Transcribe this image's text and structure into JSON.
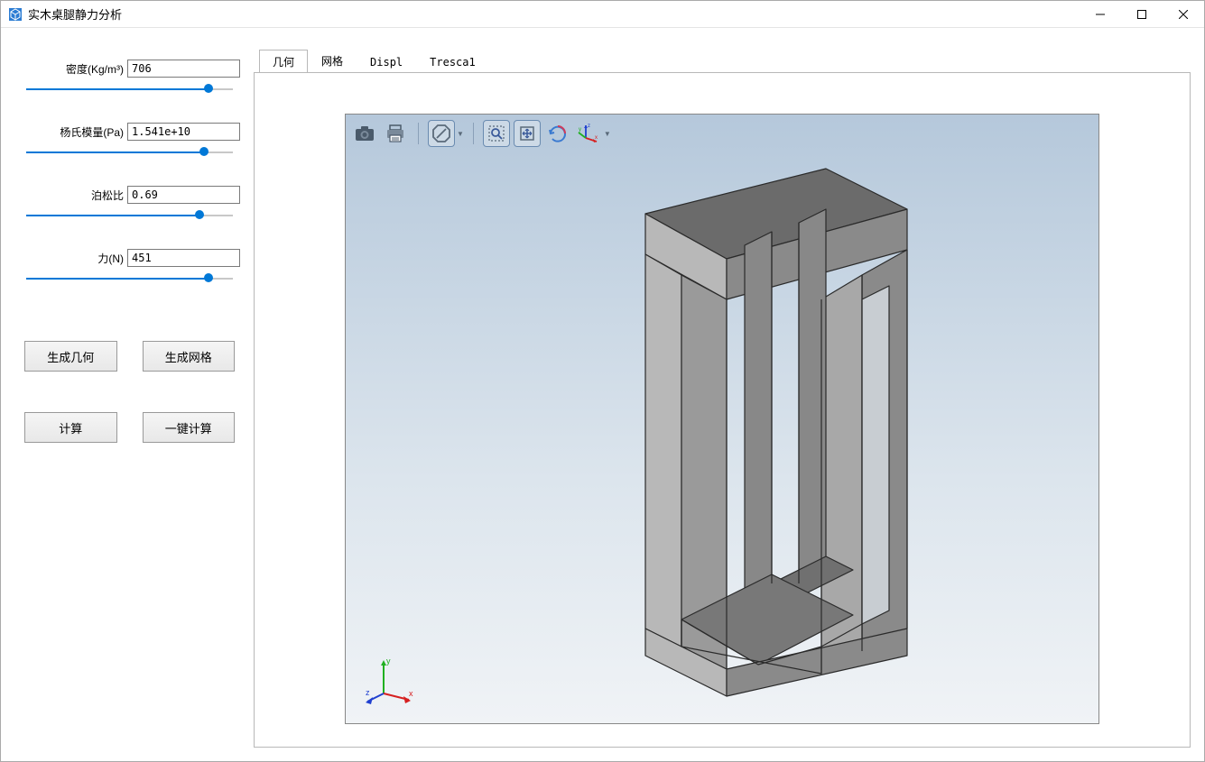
{
  "window": {
    "title": "实木桌腿静力分析"
  },
  "params": {
    "density": {
      "label": "密度(Kg/m³)",
      "value": "706",
      "slider_pct": 88
    },
    "youngs": {
      "label": "杨氏模量(Pa)",
      "value": "1.541e+10",
      "slider_pct": 86
    },
    "poisson": {
      "label": "泊松比",
      "value": "0.69",
      "slider_pct": 84
    },
    "force": {
      "label": "力(N)",
      "value": "451",
      "slider_pct": 88
    }
  },
  "buttons": {
    "gen_geom": "生成几何",
    "gen_mesh": "生成网格",
    "compute": "计算",
    "one_click": "一键计算"
  },
  "tabs": {
    "items": [
      "几何",
      "网格",
      "Displ",
      "Tresca1"
    ],
    "active_index": 0
  },
  "viewer": {
    "bg_top": "#b5c8db",
    "bg_bottom": "#f0f3f6",
    "toolbar_icons": [
      "camera",
      "print",
      "sep",
      "forbid",
      "sep",
      "zoom-rect",
      "fit",
      "rotate",
      "axes"
    ],
    "geometry_color_top": "#6b6b6b",
    "geometry_color_front": "#9a9a9a",
    "geometry_color_side": "#c0c0c0",
    "edge_color": "#2a2a2a",
    "triad": {
      "x_color": "#d62020",
      "y_color": "#20b020",
      "z_color": "#2040d0"
    }
  },
  "colors": {
    "accent": "#0078d7",
    "border": "#b8b8b8",
    "tool_border": "#6a8bb0"
  }
}
